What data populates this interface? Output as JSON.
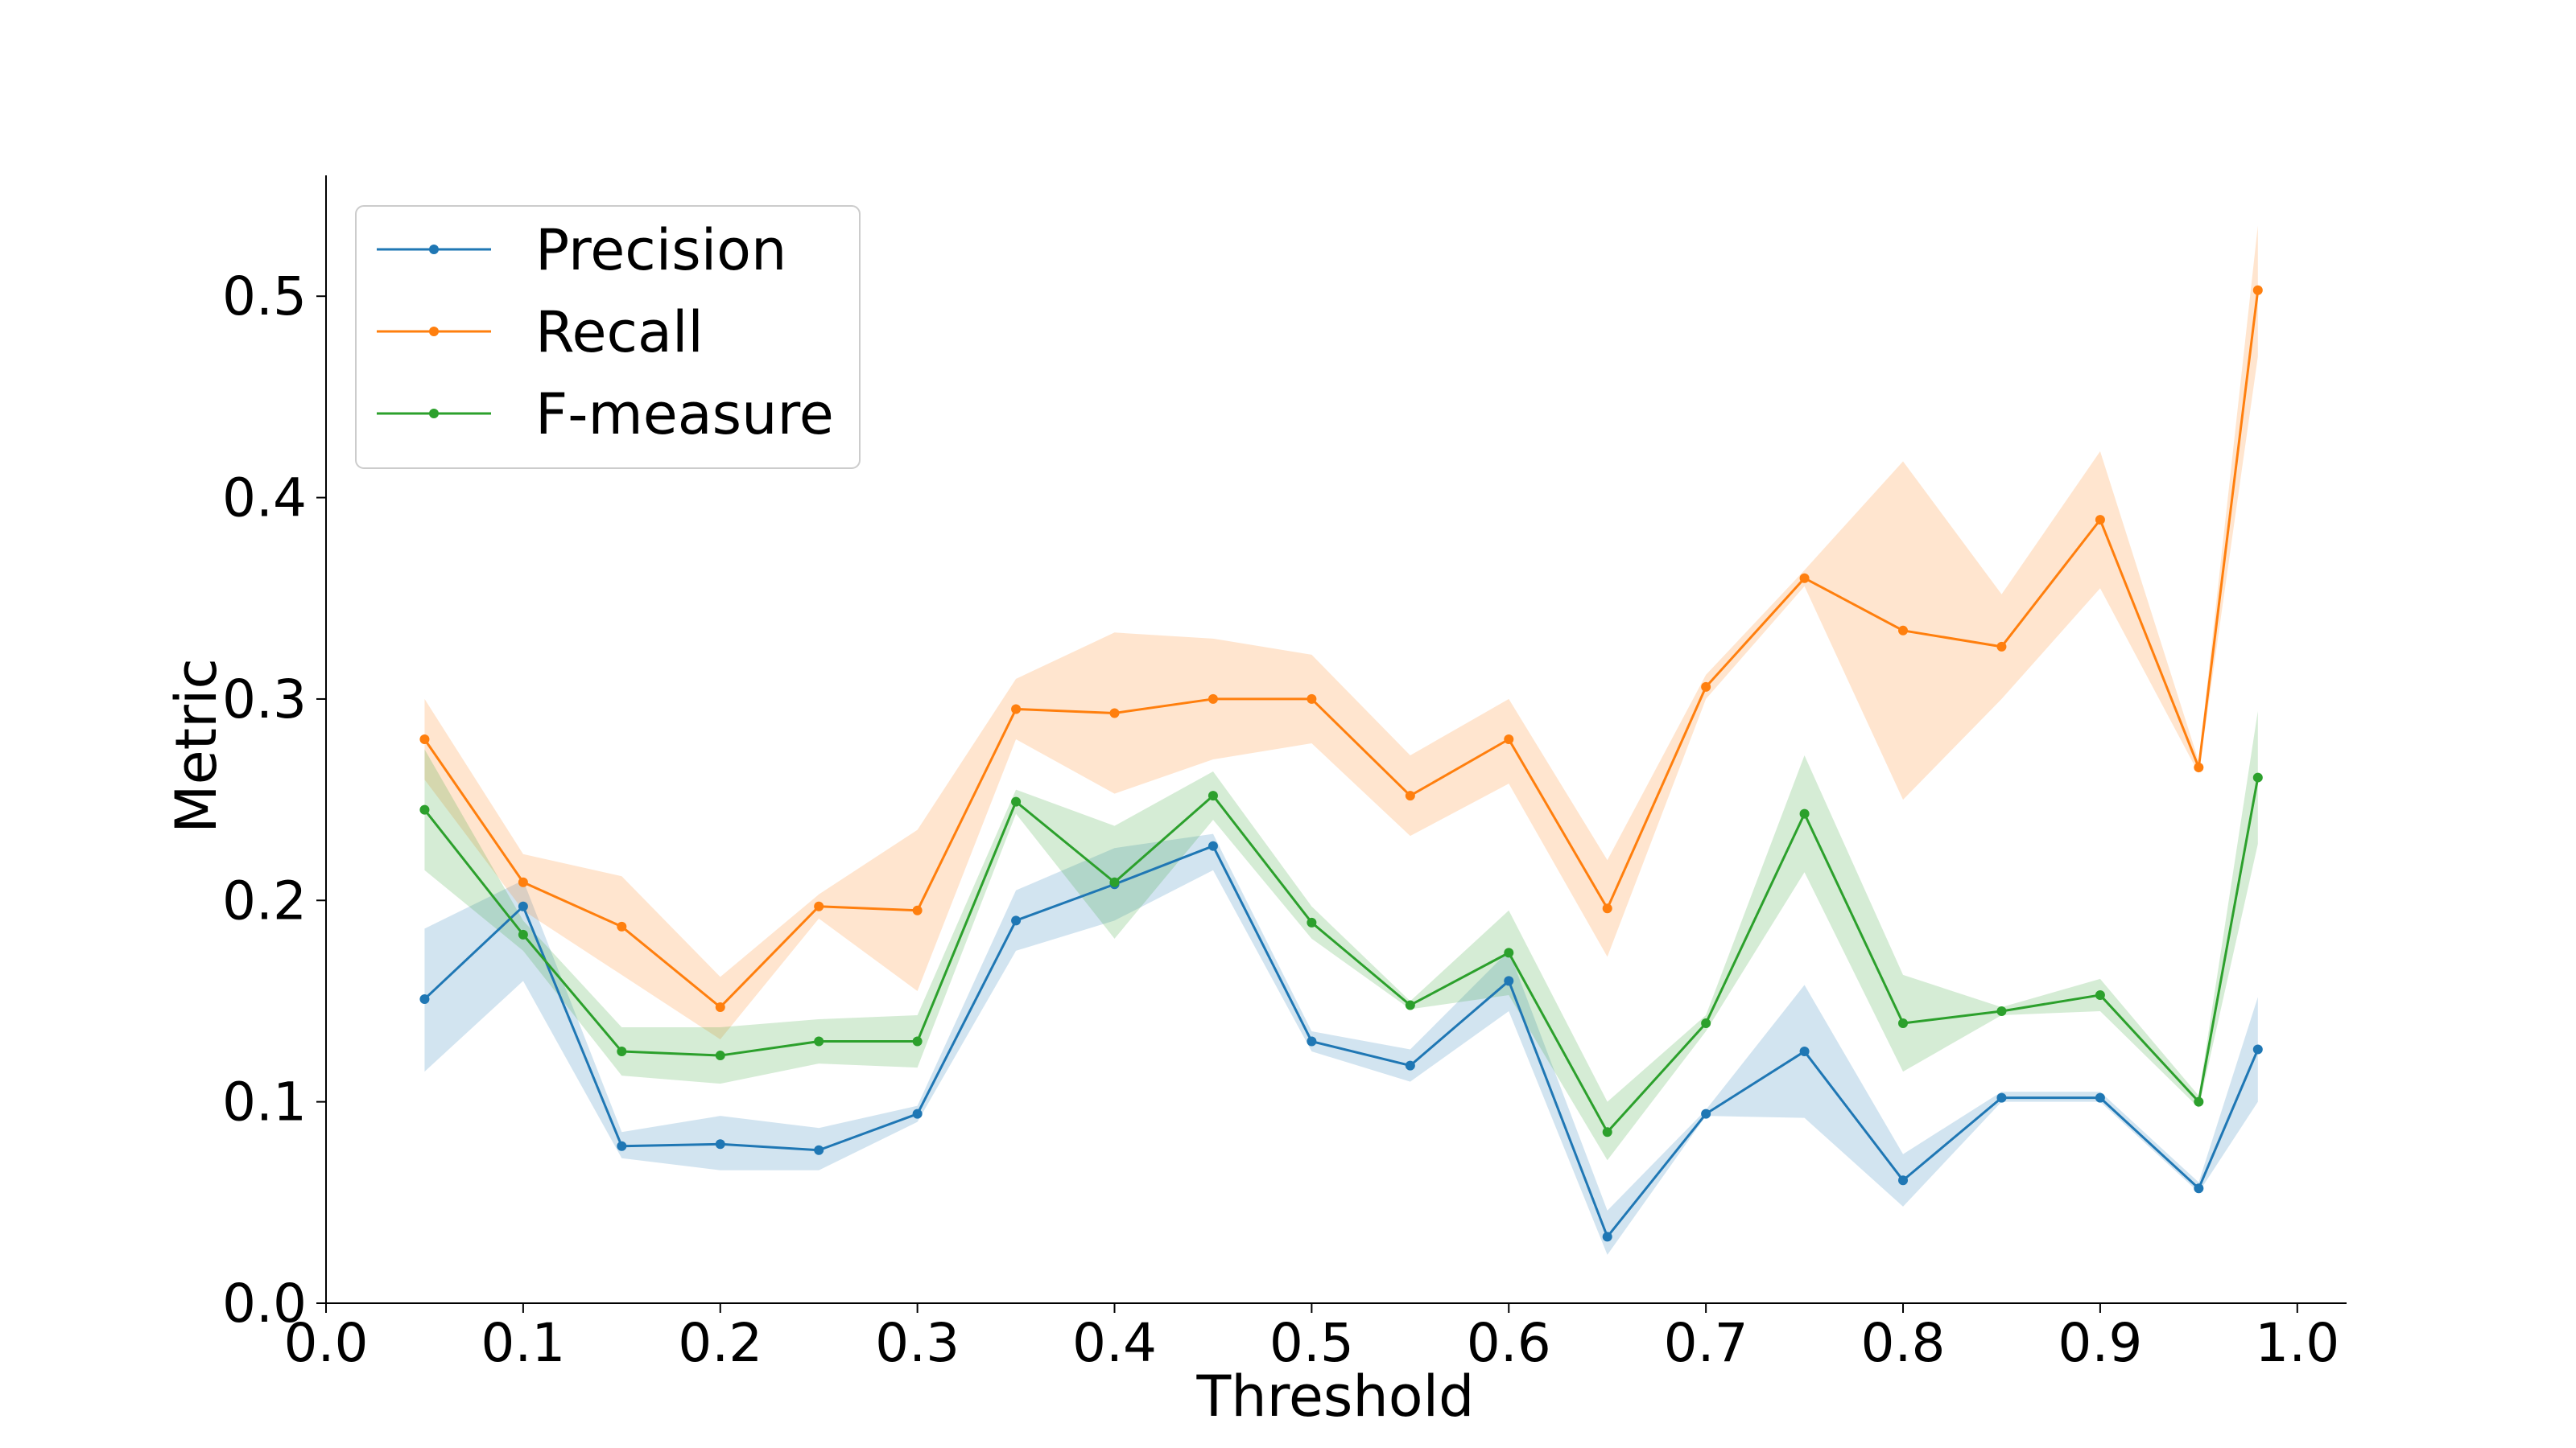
{
  "chart_data": {
    "type": "line",
    "xlabel": "Threshold",
    "ylabel": "Metric",
    "xlim": [
      0.0,
      1.025
    ],
    "ylim": [
      0.0,
      0.56
    ],
    "xticks": [
      0.0,
      0.1,
      0.2,
      0.3,
      0.4,
      0.5,
      0.6,
      0.7,
      0.8,
      0.9,
      1.0
    ],
    "xtick_labels": [
      "0.0",
      "0.1",
      "0.2",
      "0.3",
      "0.4",
      "0.5",
      "0.6",
      "0.7",
      "0.8",
      "0.9",
      "1.0"
    ],
    "yticks": [
      0.0,
      0.1,
      0.2,
      0.3,
      0.4,
      0.5
    ],
    "ytick_labels": [
      "0.0",
      "0.1",
      "0.2",
      "0.3",
      "0.4",
      "0.5"
    ],
    "grid": false,
    "legend_position": "top-left",
    "x": [
      0.05,
      0.1,
      0.15,
      0.2,
      0.25,
      0.3,
      0.35,
      0.4,
      0.45,
      0.5,
      0.55,
      0.6,
      0.65,
      0.7,
      0.75,
      0.8,
      0.85,
      0.9,
      0.95,
      0.98
    ],
    "series": [
      {
        "name": "Precision",
        "color": "#1f77b4",
        "values": [
          0.151,
          0.197,
          0.078,
          0.079,
          0.076,
          0.094,
          0.19,
          0.208,
          0.227,
          0.13,
          0.118,
          0.16,
          0.033,
          0.094,
          0.125,
          0.061,
          0.102,
          0.102,
          0.057,
          0.126
        ],
        "lower": [
          0.115,
          0.16,
          0.072,
          0.066,
          0.066,
          0.09,
          0.175,
          0.19,
          0.215,
          0.125,
          0.11,
          0.145,
          0.024,
          0.093,
          0.092,
          0.048,
          0.1,
          0.1,
          0.055,
          0.1
        ],
        "upper": [
          0.186,
          0.21,
          0.085,
          0.093,
          0.087,
          0.098,
          0.205,
          0.226,
          0.233,
          0.135,
          0.126,
          0.175,
          0.046,
          0.096,
          0.158,
          0.074,
          0.105,
          0.105,
          0.06,
          0.152
        ]
      },
      {
        "name": "Recall",
        "color": "#ff7f0e",
        "values": [
          0.28,
          0.209,
          0.187,
          0.147,
          0.197,
          0.195,
          0.295,
          0.293,
          0.3,
          0.3,
          0.252,
          0.28,
          0.196,
          0.306,
          0.36,
          0.334,
          0.326,
          0.389,
          0.266,
          0.503
        ],
        "lower": [
          0.26,
          0.195,
          0.163,
          0.131,
          0.191,
          0.155,
          0.28,
          0.253,
          0.27,
          0.278,
          0.232,
          0.258,
          0.172,
          0.3,
          0.356,
          0.25,
          0.3,
          0.355,
          0.263,
          0.47
        ],
        "upper": [
          0.3,
          0.223,
          0.212,
          0.162,
          0.203,
          0.235,
          0.31,
          0.333,
          0.33,
          0.322,
          0.272,
          0.3,
          0.22,
          0.312,
          0.364,
          0.418,
          0.352,
          0.423,
          0.269,
          0.535
        ]
      },
      {
        "name": "F-measure",
        "color": "#2ca02c",
        "values": [
          0.245,
          0.183,
          0.125,
          0.123,
          0.13,
          0.13,
          0.249,
          0.209,
          0.252,
          0.189,
          0.148,
          0.174,
          0.085,
          0.139,
          0.243,
          0.139,
          0.145,
          0.153,
          0.1,
          0.261
        ],
        "lower": [
          0.215,
          0.175,
          0.113,
          0.109,
          0.119,
          0.117,
          0.243,
          0.181,
          0.24,
          0.181,
          0.146,
          0.153,
          0.071,
          0.135,
          0.214,
          0.115,
          0.143,
          0.145,
          0.097,
          0.228
        ],
        "upper": [
          0.275,
          0.19,
          0.137,
          0.137,
          0.141,
          0.143,
          0.255,
          0.237,
          0.264,
          0.197,
          0.15,
          0.195,
          0.1,
          0.143,
          0.272,
          0.163,
          0.147,
          0.161,
          0.103,
          0.294
        ]
      }
    ]
  }
}
